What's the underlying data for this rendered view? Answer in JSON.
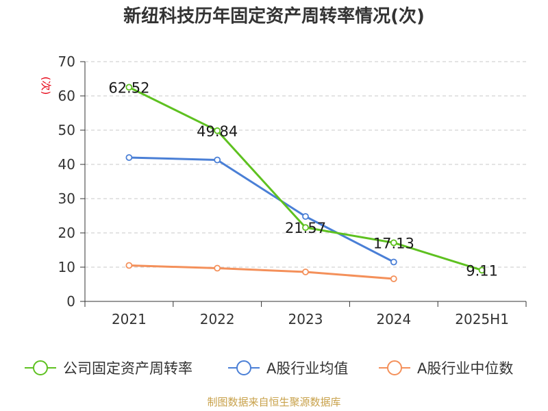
{
  "chart_data": {
    "type": "line",
    "title": "新纽科技历年固定资产周转率情况(次)",
    "ylabel": "(次)",
    "xlabel": "",
    "categories": [
      "2021",
      "2022",
      "2023",
      "2024",
      "2025H1"
    ],
    "ylim": [
      0,
      70
    ],
    "yticks": [
      0,
      10,
      20,
      30,
      40,
      50,
      60,
      70
    ],
    "grid": true,
    "legend_position": "bottom",
    "series": [
      {
        "name": "公司固定资产周转率",
        "color": "#5ec120",
        "values": [
          62.52,
          49.84,
          21.57,
          17.13,
          9.11
        ],
        "show_labels": true
      },
      {
        "name": "A股行业均值",
        "color": "#4a7fd6",
        "values": [
          42.0,
          41.3,
          24.8,
          11.5,
          null
        ],
        "show_labels": false
      },
      {
        "name": "A股行业中位数",
        "color": "#f4905a",
        "values": [
          10.5,
          9.7,
          8.6,
          6.6,
          null
        ],
        "show_labels": false
      }
    ],
    "data_labels": [
      "62.52",
      "49.84",
      "21.57",
      "17.13",
      "9.11"
    ]
  },
  "source": "制图数据来自恒生聚源数据库"
}
